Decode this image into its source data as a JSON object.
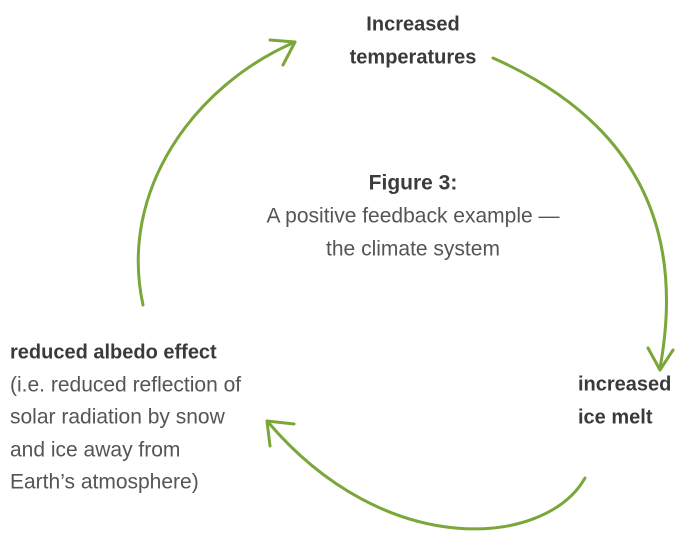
{
  "caption": {
    "label": "Figure 3:",
    "lines": [
      "A positive feedback example —",
      "the climate system"
    ]
  },
  "nodes": [
    {
      "title_lines": [
        "Increased",
        "temperatures"
      ]
    },
    {
      "title_lines": [
        "increased",
        "ice melt"
      ]
    },
    {
      "title_lines": [
        "reduced albedo effect"
      ],
      "detail_lines": [
        "(i.e. reduced reflection of",
        "solar radiation by snow",
        "and ice away from",
        "Earth’s atmosphere)"
      ]
    }
  ]
}
